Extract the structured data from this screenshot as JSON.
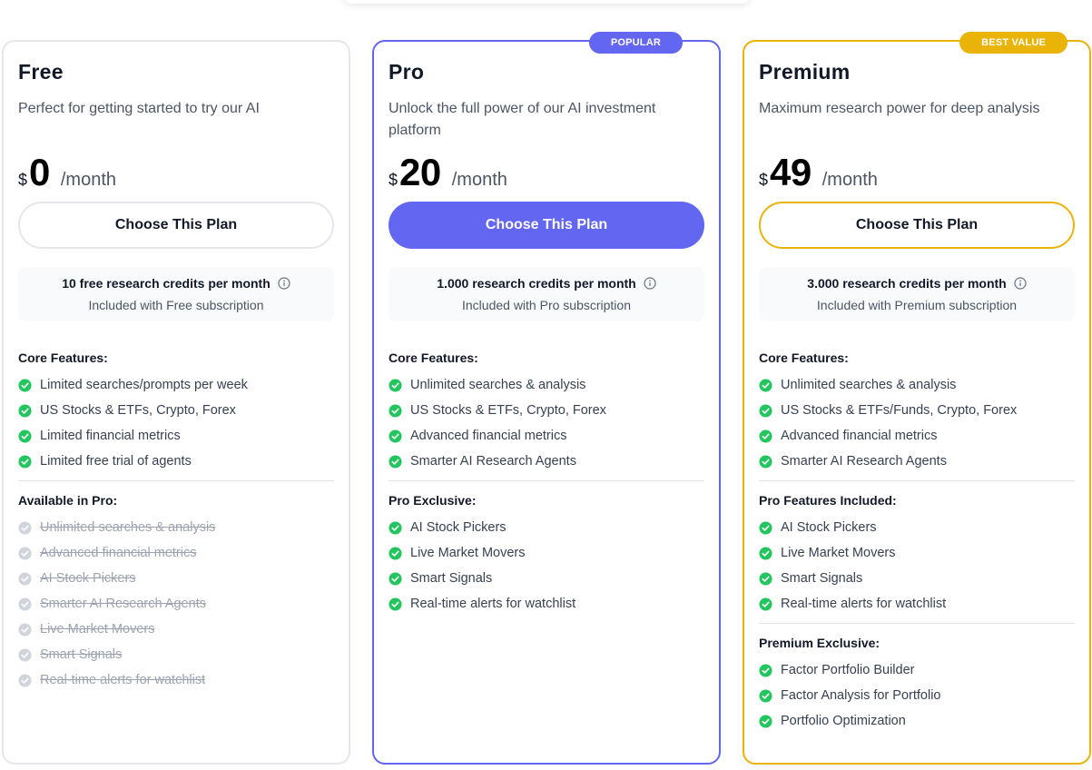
{
  "colors": {
    "accent_pro": "#6366f1",
    "accent_premium": "#eab308",
    "check_green": "#22c55e",
    "disabled_gray": "#d1d5db"
  },
  "plans": [
    {
      "name": "Free",
      "description": "Perfect for getting started to try our AI",
      "currency": "$",
      "price": "0",
      "period": "/month",
      "cta": "Choose This Plan",
      "credits": {
        "title": "10 free research credits per month",
        "subtitle": "Included with Free subscription"
      },
      "core_title": "Core Features:",
      "core": [
        "Limited searches/prompts per week",
        "US Stocks & ETFs, Crypto, Forex",
        "Limited financial metrics",
        "Limited free trial of agents"
      ],
      "extra_title": "Available in Pro:",
      "extra": [
        "Unlimited searches & analysis",
        "Advanced financial metrics",
        "AI Stock Pickers",
        "Smarter AI Research Agents",
        "Live Market Movers",
        "Smart Signals",
        "Real-time alerts for watchlist"
      ]
    },
    {
      "name": "Pro",
      "badge": "POPULAR",
      "description": "Unlock the full power of our AI investment platform",
      "currency": "$",
      "price": "20",
      "period": "/month",
      "cta": "Choose This Plan",
      "credits": {
        "title": "1.000 research credits per month",
        "subtitle": "Included with Pro subscription"
      },
      "core_title": "Core Features:",
      "core": [
        "Unlimited searches & analysis",
        "US Stocks & ETFs, Crypto, Forex",
        "Advanced financial metrics",
        "Smarter AI Research Agents"
      ],
      "extra_title": "Pro Exclusive:",
      "extra": [
        "AI Stock Pickers",
        "Live Market Movers",
        "Smart Signals",
        "Real-time alerts for watchlist"
      ]
    },
    {
      "name": "Premium",
      "badge": "BEST VALUE",
      "description": "Maximum research power for deep analysis",
      "currency": "$",
      "price": "49",
      "period": "/month",
      "cta": "Choose This Plan",
      "credits": {
        "title": "3.000 research credits per month",
        "subtitle": "Included with Premium subscription"
      },
      "core_title": "Core Features:",
      "core": [
        "Unlimited searches & analysis",
        "US Stocks & ETFs/Funds, Crypto, Forex",
        "Advanced financial metrics",
        "Smarter AI Research Agents"
      ],
      "extra_title": "Pro Features Included:",
      "extra": [
        "AI Stock Pickers",
        "Live Market Movers",
        "Smart Signals",
        "Real-time alerts for watchlist"
      ],
      "exclusive_title": "Premium Exclusive:",
      "exclusive": [
        "Factor Portfolio Builder",
        "Factor Analysis for Portfolio",
        "Portfolio Optimization"
      ]
    }
  ]
}
